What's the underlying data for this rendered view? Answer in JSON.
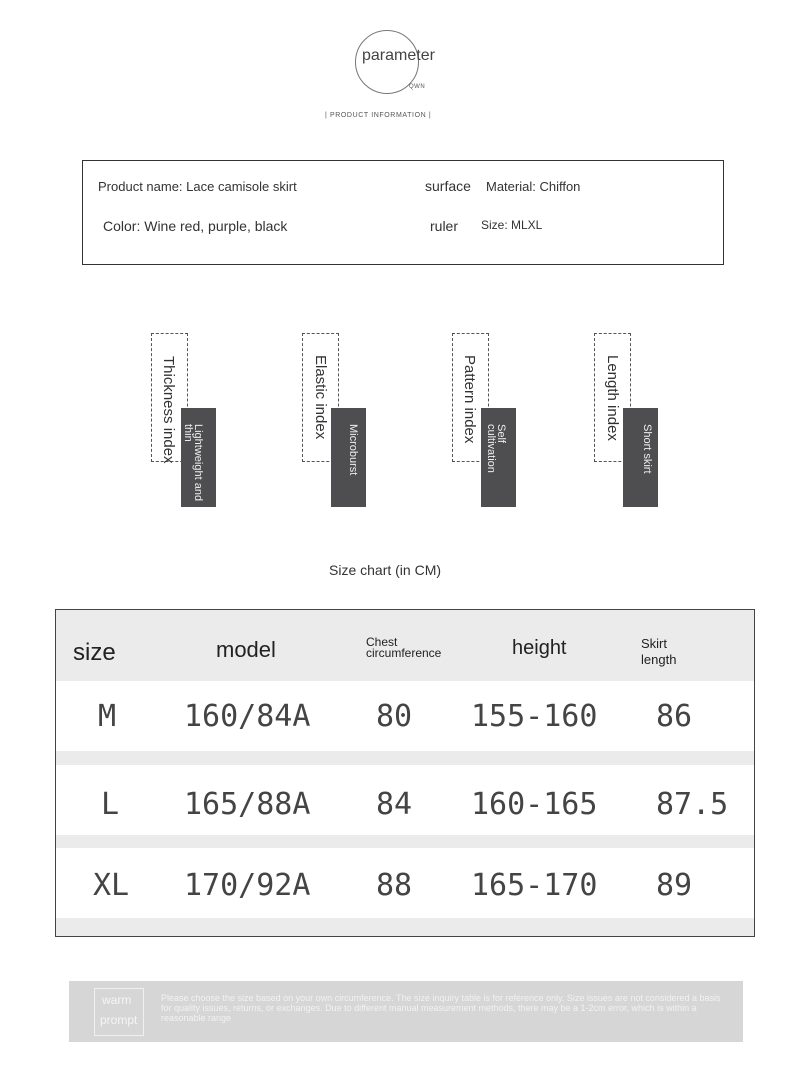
{
  "header": {
    "logo_text": "parameter",
    "logo_sub": "QWN",
    "section_title": "|  PRODUCT INFORMATION  |"
  },
  "info": {
    "product_name": "Product name: Lace camisole skirt",
    "surface_tag": "surface",
    "material": "Material: Chiffon",
    "color": "Color: Wine red, purple, black",
    "ruler_tag": "ruler",
    "size": "Size: MLXL"
  },
  "indices": [
    {
      "label": "Thickness index",
      "value": "Lightweight and thin"
    },
    {
      "label": "Elastic index",
      "value": "Microburst"
    },
    {
      "label": "Pattern index",
      "value": "Self cultivation"
    },
    {
      "label": "Length index",
      "value": "Short skirt"
    }
  ],
  "size_chart": {
    "title": "Size chart (in CM)",
    "headers": [
      "size",
      "model",
      "Chest circumference",
      "height",
      "Skirt length"
    ],
    "rows": [
      [
        "M",
        "160/84A",
        "80",
        "155-160",
        "86"
      ],
      [
        "L",
        "165/88A",
        "84",
        "160-165",
        "87.5"
      ],
      [
        "XL",
        "170/92A",
        "88",
        "165-170",
        "89"
      ]
    ]
  },
  "warm_prompt": {
    "label_line1": "warm",
    "label_line2": "prompt",
    "text": "Please choose the size based on your own circumference. The size inquiry table is for reference only. Size issues are not considered a basis for quality issues, returns, or exchanges. Due to different manual measurement methods, there may be a 1-2cm error, which is within a reasonable range"
  }
}
